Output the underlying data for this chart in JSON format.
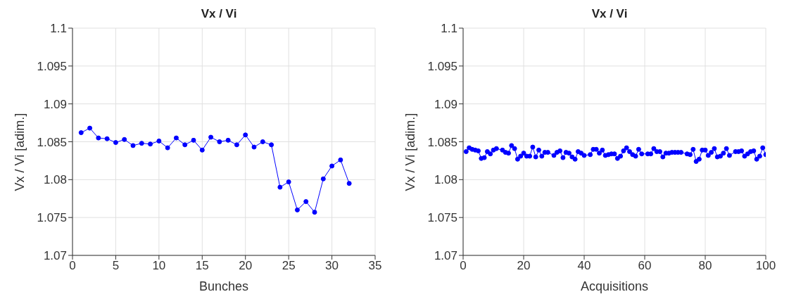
{
  "chart_data": [
    {
      "type": "line",
      "title": "Vx / Vi",
      "xlabel": "Bunches",
      "ylabel": "Vx / Vi [adim.]",
      "xlim": [
        0,
        35
      ],
      "xticks": [
        0,
        5,
        10,
        15,
        20,
        25,
        30,
        35
      ],
      "ylim": [
        1.07,
        1.1
      ],
      "yticks": [
        1.07,
        1.075,
        1.08,
        1.085,
        1.09,
        1.095,
        1.1
      ],
      "grid": true,
      "marker": "circle",
      "line_style": "solid",
      "x": [
        1,
        2,
        3,
        4,
        5,
        6,
        7,
        8,
        9,
        10,
        11,
        12,
        13,
        14,
        15,
        16,
        17,
        18,
        19,
        20,
        21,
        22,
        23,
        24,
        25,
        26,
        27,
        28,
        29,
        30,
        31,
        32
      ],
      "series": [
        {
          "color": "#0000ff",
          "values": [
            1.0862,
            1.0868,
            1.0855,
            1.0854,
            1.0849,
            1.0853,
            1.0845,
            1.0848,
            1.0847,
            1.0851,
            1.0842,
            1.0855,
            1.0846,
            1.0852,
            1.0839,
            1.0856,
            1.085,
            1.0852,
            1.0846,
            1.0859,
            1.0843,
            1.085,
            1.0846,
            1.079,
            1.0797,
            1.076,
            1.0771,
            1.0757,
            1.0801,
            1.0818,
            1.0826,
            1.0795
          ]
        }
      ]
    },
    {
      "type": "line",
      "title": "Vx / Vi",
      "xlabel": "Acquisitions",
      "ylabel": "Vx / Vi [adim.]",
      "xlim": [
        0,
        100
      ],
      "xticks": [
        0,
        20,
        40,
        60,
        80,
        100
      ],
      "ylim": [
        1.07,
        1.1
      ],
      "yticks": [
        1.07,
        1.075,
        1.08,
        1.085,
        1.09,
        1.095,
        1.1
      ],
      "grid": true,
      "marker": "circle",
      "line_style": "solid",
      "x": [
        1,
        2,
        3,
        4,
        5,
        6,
        7,
        8,
        9,
        10,
        11,
        13,
        14,
        15,
        16,
        17,
        18,
        19,
        20,
        21,
        22,
        23,
        24,
        25,
        26,
        27,
        28,
        30,
        31,
        32,
        33,
        34,
        35,
        36,
        37,
        38,
        39,
        40,
        42,
        43,
        44,
        45,
        46,
        47,
        48,
        49,
        50,
        51,
        52,
        53,
        54,
        55,
        56,
        57,
        58,
        59,
        61,
        62,
        63,
        64,
        65,
        66,
        67,
        68,
        69,
        70,
        71,
        72,
        74,
        75,
        76,
        77,
        78,
        79,
        80,
        81,
        82,
        83,
        84,
        85,
        86,
        87,
        88,
        90,
        91,
        92,
        93,
        94,
        95,
        96,
        97,
        98,
        99,
        100
      ],
      "series": [
        {
          "color": "#0000ff",
          "values": [
            1.0837,
            1.0842,
            1.084,
            1.0839,
            1.0838,
            1.0828,
            1.0829,
            1.0837,
            1.0834,
            1.0839,
            1.0841,
            1.0839,
            1.0836,
            1.0835,
            1.0845,
            1.0841,
            1.0827,
            1.0831,
            1.0835,
            1.0831,
            1.0831,
            1.0843,
            1.083,
            1.0839,
            1.0831,
            1.0836,
            1.0836,
            1.0832,
            1.0836,
            1.0838,
            1.0829,
            1.0836,
            1.0835,
            1.083,
            1.0827,
            1.0837,
            1.0835,
            1.0832,
            1.0833,
            1.084,
            1.084,
            1.0835,
            1.0839,
            1.0832,
            1.0833,
            1.0834,
            1.0834,
            1.0828,
            1.0831,
            1.0838,
            1.0842,
            1.0837,
            1.0833,
            1.0831,
            1.084,
            1.0834,
            1.0834,
            1.0834,
            1.0841,
            1.0837,
            1.0837,
            1.083,
            1.0835,
            1.0835,
            1.0836,
            1.0836,
            1.0836,
            1.0836,
            1.0834,
            1.0833,
            1.084,
            1.0824,
            1.0827,
            1.0839,
            1.0839,
            1.0832,
            1.0836,
            1.0841,
            1.083,
            1.0831,
            1.0835,
            1.0841,
            1.0832,
            1.0837,
            1.0837,
            1.0838,
            1.0831,
            1.0834,
            1.0837,
            1.0838,
            1.0827,
            1.0831,
            1.0842,
            1.0833
          ]
        }
      ]
    }
  ]
}
